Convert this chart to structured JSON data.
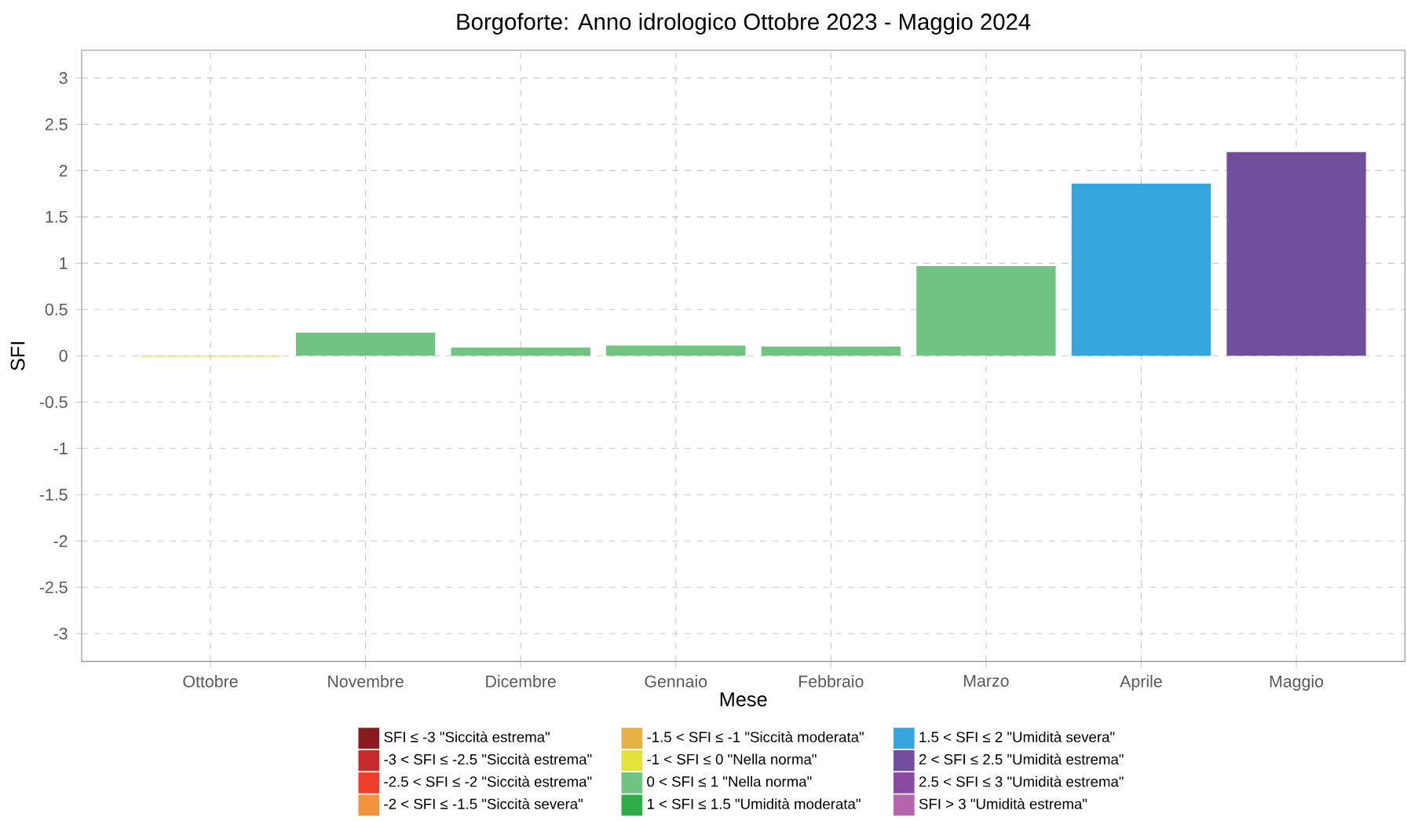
{
  "chart_data": {
    "type": "bar",
    "title": "Borgoforte: Anno idrologico Ottobre 2023 - Maggio 2024",
    "xlabel": "Mese",
    "ylabel": "SFI",
    "categories": [
      "Ottobre",
      "Novembre",
      "Dicembre",
      "Gennaio",
      "Febbraio",
      "Marzo",
      "Aprile",
      "Maggio"
    ],
    "series": [
      {
        "name": "SFI ≤ -3 \"Siccità estrema\"",
        "color": "#8b1a1e",
        "values": [
          null,
          null,
          null,
          null,
          null,
          null,
          null,
          null
        ]
      },
      {
        "name": "-3 < SFI ≤ -2.5 \"Siccità estrema\"",
        "color": "#c92a2c",
        "values": [
          null,
          null,
          null,
          null,
          null,
          null,
          null,
          null
        ]
      },
      {
        "name": "-2.5 < SFI ≤ -2 \"Siccità estrema\"",
        "color": "#f03e2c",
        "values": [
          null,
          null,
          null,
          null,
          null,
          null,
          null,
          null
        ]
      },
      {
        "name": "-2 < SFI ≤ -1.5 \"Siccità severa\"",
        "color": "#f5923e",
        "values": [
          null,
          null,
          null,
          null,
          null,
          null,
          null,
          null
        ]
      },
      {
        "name": "-1.5 < SFI ≤ -1 \"Siccità moderata\"",
        "color": "#e7b143",
        "values": [
          null,
          null,
          null,
          null,
          null,
          null,
          null,
          null
        ]
      },
      {
        "name": "-1 < SFI ≤ 0 \"Nella norma\"",
        "color": "#e2e23a",
        "values": [
          -0.01,
          null,
          null,
          null,
          null,
          null,
          null,
          null
        ]
      },
      {
        "name": "0 < SFI ≤ 1 \"Nella norma\"",
        "color": "#71c383",
        "values": [
          null,
          0.25,
          0.09,
          0.11,
          0.1,
          0.97,
          null,
          null
        ]
      },
      {
        "name": "1 < SFI ≤ 1.5 \"Umidità moderata\"",
        "color": "#2eac48",
        "values": [
          null,
          null,
          null,
          null,
          null,
          null,
          null,
          null
        ]
      },
      {
        "name": "1.5 < SFI ≤ 2 \"Umidità severa\"",
        "color": "#35a6dd",
        "values": [
          null,
          null,
          null,
          null,
          null,
          null,
          1.86,
          null
        ]
      },
      {
        "name": "2 < SFI ≤ 2.5 \"Umidità estrema\"",
        "color": "#724f9c",
        "values": [
          null,
          null,
          null,
          null,
          null,
          null,
          null,
          2.2
        ]
      },
      {
        "name": "2.5 < SFI ≤ 3 \"Umidità estrema\"",
        "color": "#8a4a9f",
        "values": [
          null,
          null,
          null,
          null,
          null,
          null,
          null,
          null
        ]
      },
      {
        "name": "SFI > 3 \"Umidità estrema\"",
        "color": "#b565ab",
        "values": [
          null,
          null,
          null,
          null,
          null,
          null,
          null,
          null
        ]
      }
    ],
    "ylim": [
      -3.3,
      3.3
    ],
    "yticks": [
      -3,
      -2.5,
      -2,
      -1.5,
      -1,
      -0.5,
      0,
      0.5,
      1,
      1.5,
      2,
      2.5,
      3
    ],
    "grid": true,
    "legend": "bottom"
  }
}
